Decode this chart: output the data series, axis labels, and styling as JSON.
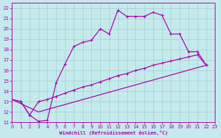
{
  "background_color": "#c5eaec",
  "grid_color": "#9dcfca",
  "line_color": "#aa00aa",
  "xlim": [
    0,
    23
  ],
  "ylim": [
    11,
    22.5
  ],
  "x_ticks": [
    0,
    1,
    2,
    3,
    4,
    5,
    6,
    7,
    8,
    9,
    10,
    11,
    12,
    13,
    14,
    15,
    16,
    17,
    18,
    19,
    20,
    21,
    22,
    23
  ],
  "y_ticks": [
    11,
    12,
    13,
    14,
    15,
    16,
    17,
    18,
    19,
    20,
    21,
    22
  ],
  "xlabel": "Windchill (Refroidissement éolien,°C)",
  "curve1_x": [
    0,
    1,
    2,
    3,
    4,
    5,
    6,
    7,
    8,
    9,
    10,
    11,
    12,
    13,
    14,
    15,
    16,
    17,
    18,
    19,
    20,
    21,
    22
  ],
  "curve1_y": [
    13.2,
    13.0,
    11.7,
    11.1,
    11.2,
    14.8,
    16.6,
    18.3,
    18.7,
    18.9,
    20.0,
    19.5,
    21.8,
    21.2,
    21.2,
    21.2,
    21.6,
    21.3,
    19.5,
    19.5,
    17.8,
    17.8,
    16.5
  ],
  "curve2_x": [
    0,
    1,
    2,
    3,
    4,
    5,
    6,
    7,
    8,
    9,
    10,
    11,
    12,
    13,
    14,
    15,
    16,
    17,
    18,
    19,
    20,
    21,
    22
  ],
  "curve2_y": [
    13.2,
    13.0,
    11.7,
    13.0,
    13.2,
    13.5,
    13.8,
    14.1,
    14.4,
    14.6,
    14.9,
    15.2,
    15.5,
    15.7,
    16.0,
    16.2,
    16.5,
    16.7,
    16.9,
    17.1,
    17.3,
    17.5,
    16.5
  ],
  "line3_x": [
    0,
    3,
    22
  ],
  "line3_y": [
    13.2,
    12.0,
    16.5
  ]
}
